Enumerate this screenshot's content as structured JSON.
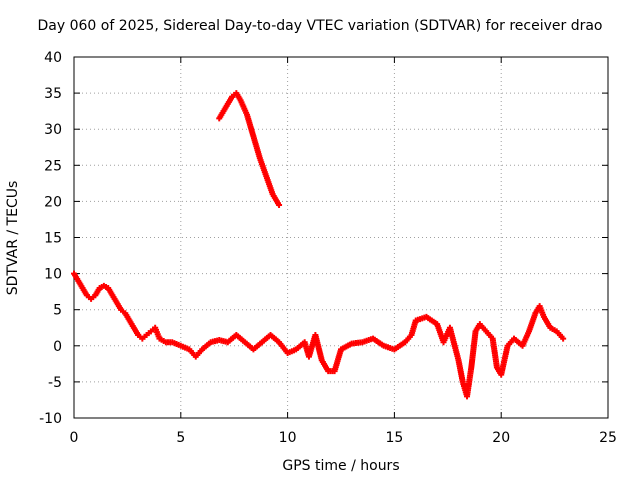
{
  "chart_data": {
    "type": "scatter",
    "title": "Day 060 of 2025, Sidereal Day-to-day VTEC variation (SDTVAR) for receiver drao",
    "xlabel": "GPS time / hours",
    "ylabel": "SDTVAR / TECUs",
    "xlim": [
      0,
      25
    ],
    "ylim": [
      -10,
      40
    ],
    "xticks": [
      0,
      5,
      10,
      15,
      20,
      25
    ],
    "yticks": [
      -10,
      -5,
      0,
      5,
      10,
      15,
      20,
      25,
      30,
      35,
      40
    ],
    "grid": true,
    "series": [
      {
        "name": "SDTVAR",
        "color": "#ff0000",
        "points": [
          [
            0.0,
            10.0
          ],
          [
            0.2,
            9.0
          ],
          [
            0.4,
            8.0
          ],
          [
            0.6,
            7.0
          ],
          [
            0.8,
            6.5
          ],
          [
            1.0,
            7.0
          ],
          [
            1.2,
            8.0
          ],
          [
            1.4,
            8.3
          ],
          [
            1.6,
            8.0
          ],
          [
            1.8,
            7.0
          ],
          [
            2.0,
            6.0
          ],
          [
            2.2,
            5.0
          ],
          [
            2.4,
            4.5
          ],
          [
            2.6,
            3.5
          ],
          [
            2.8,
            2.5
          ],
          [
            3.0,
            1.5
          ],
          [
            3.2,
            1.0
          ],
          [
            3.4,
            1.5
          ],
          [
            3.6,
            2.0
          ],
          [
            3.8,
            2.5
          ],
          [
            4.0,
            1.0
          ],
          [
            4.3,
            0.5
          ],
          [
            4.6,
            0.5
          ],
          [
            5.0,
            0.0
          ],
          [
            5.4,
            -0.5
          ],
          [
            5.7,
            -1.5
          ],
          [
            6.0,
            -0.5
          ],
          [
            6.4,
            0.5
          ],
          [
            6.8,
            0.8
          ],
          [
            7.2,
            0.5
          ],
          [
            7.6,
            1.5
          ],
          [
            8.0,
            0.5
          ],
          [
            8.4,
            -0.5
          ],
          [
            8.8,
            0.5
          ],
          [
            9.2,
            1.5
          ],
          [
            9.6,
            0.5
          ],
          [
            10.0,
            -1.0
          ],
          [
            10.4,
            -0.5
          ],
          [
            10.8,
            0.5
          ],
          [
            11.0,
            -1.5
          ],
          [
            11.3,
            1.5
          ],
          [
            11.6,
            -2.0
          ],
          [
            11.9,
            -3.5
          ],
          [
            12.2,
            -3.5
          ],
          [
            12.5,
            -0.5
          ],
          [
            13.0,
            0.3
          ],
          [
            13.5,
            0.5
          ],
          [
            14.0,
            1.0
          ],
          [
            14.5,
            0.0
          ],
          [
            15.0,
            -0.5
          ],
          [
            15.5,
            0.5
          ],
          [
            15.8,
            1.5
          ],
          [
            16.0,
            3.5
          ],
          [
            16.5,
            4.0
          ],
          [
            17.0,
            3.0
          ],
          [
            17.3,
            0.5
          ],
          [
            17.6,
            2.5
          ],
          [
            18.0,
            -2.0
          ],
          [
            18.2,
            -5.0
          ],
          [
            18.4,
            -7.0
          ],
          [
            18.6,
            -3.0
          ],
          [
            18.8,
            2.0
          ],
          [
            19.0,
            3.0
          ],
          [
            19.3,
            2.0
          ],
          [
            19.6,
            1.0
          ],
          [
            19.8,
            -3.0
          ],
          [
            20.0,
            -4.0
          ],
          [
            20.3,
            0.0
          ],
          [
            20.6,
            1.0
          ],
          [
            21.0,
            0.0
          ],
          [
            21.3,
            2.0
          ],
          [
            21.6,
            4.5
          ],
          [
            21.8,
            5.5
          ],
          [
            22.0,
            4.0
          ],
          [
            22.3,
            2.5
          ],
          [
            22.6,
            2.0
          ],
          [
            22.9,
            1.0
          ],
          [
            6.8,
            31.5
          ],
          [
            7.1,
            33.0
          ],
          [
            7.4,
            34.5
          ],
          [
            7.6,
            35.0
          ],
          [
            7.8,
            34.0
          ],
          [
            8.1,
            32.0
          ],
          [
            8.4,
            29.0
          ],
          [
            8.7,
            26.0
          ],
          [
            9.0,
            23.5
          ],
          [
            9.3,
            21.0
          ],
          [
            9.6,
            19.5
          ]
        ]
      }
    ]
  }
}
